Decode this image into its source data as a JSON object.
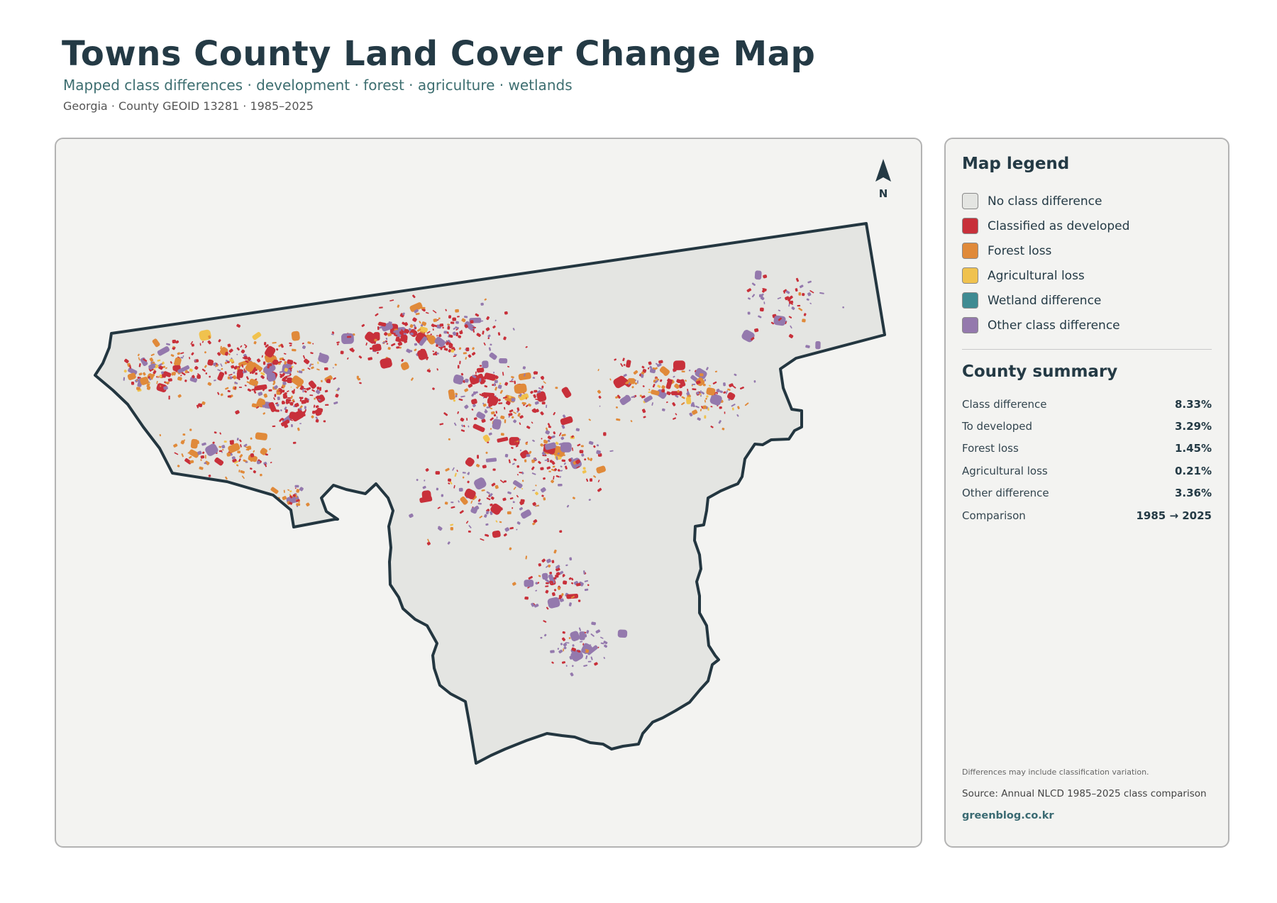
{
  "header": {
    "title": "Towns County Land Cover Change Map",
    "subtitle": "Mapped class differences · development · forest · agriculture · wetlands",
    "meta": "Georgia · County GEOID 13281 · 1985–2025"
  },
  "map": {
    "north_label": "N",
    "boundary_color": "#233640",
    "fill_color": "#e4e5e2"
  },
  "legend": {
    "title": "Map legend",
    "items": [
      {
        "label": "No class difference",
        "color": "#e4e5e2"
      },
      {
        "label": "Classified as developed",
        "color": "#c8303a"
      },
      {
        "label": "Forest loss",
        "color": "#e08a3a"
      },
      {
        "label": "Agricultural loss",
        "color": "#f0c24e"
      },
      {
        "label": "Wetland difference",
        "color": "#3f8b92"
      },
      {
        "label": "Other class difference",
        "color": "#9479ad"
      }
    ]
  },
  "summary": {
    "title": "County summary",
    "rows": [
      {
        "label": "Class difference",
        "value": "8.33%"
      },
      {
        "label": "To developed",
        "value": "3.29%"
      },
      {
        "label": "Forest loss",
        "value": "1.45%"
      },
      {
        "label": "Agricultural loss",
        "value": "0.21%"
      },
      {
        "label": "Other difference",
        "value": "3.36%"
      },
      {
        "label": "Comparison",
        "value": "1985 → 2025"
      }
    ]
  },
  "footer": {
    "note": "Differences may include classification variation.",
    "source": "Source: Annual NLCD 1985–2025 class comparison",
    "credit": "greenblog.co.kr"
  }
}
